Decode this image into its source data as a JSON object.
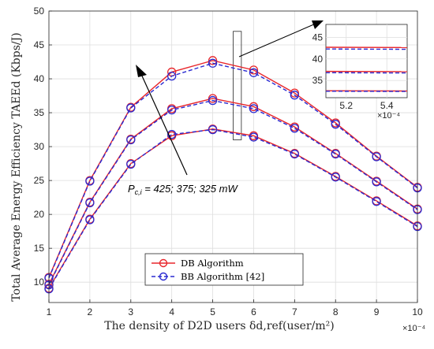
{
  "chart_data": {
    "type": "line",
    "xlabel": "The density of D2D users δd,ref(user/m²)",
    "ylabel": "Total Average Energy Efficiency TAEEd (Kbps/J)",
    "x_exponent": "×10⁻⁴",
    "x": [
      1,
      2,
      3,
      4,
      5,
      6,
      7,
      8,
      9,
      10
    ],
    "xlim": [
      1,
      10
    ],
    "ylim": [
      7,
      50
    ],
    "xticks": [
      "1",
      "2",
      "3",
      "4",
      "5",
      "6",
      "7",
      "8",
      "9",
      "10"
    ],
    "yticks": [
      "10",
      "15",
      "20",
      "25",
      "30",
      "35",
      "40",
      "45",
      "50"
    ],
    "grid": true,
    "legend_position": "bottom-center",
    "series": [
      {
        "name": "DB Algorithm",
        "group": "Pc=425",
        "values": [
          10.7,
          25.0,
          35.8,
          41.0,
          42.7,
          41.3,
          37.9,
          33.5,
          28.6,
          24.0
        ]
      },
      {
        "name": "BB Algorithm [42]",
        "group": "Pc=425",
        "values": [
          10.6,
          24.9,
          35.7,
          40.4,
          42.3,
          40.9,
          37.6,
          33.3,
          28.5,
          23.9
        ]
      },
      {
        "name": "DB Algorithm",
        "group": "Pc=375",
        "values": [
          9.7,
          21.8,
          31.1,
          35.6,
          37.1,
          35.9,
          32.9,
          29.0,
          24.9,
          20.8
        ]
      },
      {
        "name": "BB Algorithm [42]",
        "group": "Pc=375",
        "values": [
          9.6,
          21.7,
          31.0,
          35.4,
          36.8,
          35.6,
          32.7,
          28.9,
          24.8,
          20.7
        ]
      },
      {
        "name": "DB Algorithm",
        "group": "Pc=325",
        "values": [
          9.1,
          19.3,
          27.5,
          31.6,
          32.6,
          31.6,
          29.0,
          25.6,
          22.0,
          18.3
        ]
      },
      {
        "name": "BB Algorithm [42]",
        "group": "Pc=325",
        "values": [
          9.0,
          19.2,
          27.4,
          31.8,
          32.5,
          31.4,
          28.9,
          25.5,
          21.9,
          18.2
        ]
      }
    ],
    "series_styles": {
      "DB Algorithm": {
        "color": "#e8262b",
        "dash": "solid",
        "marker": "circle"
      },
      "BB Algorithm [42]": {
        "color": "#2a2ad1",
        "dash": "dashed",
        "marker": "circle"
      }
    },
    "legend": [
      "DB Algorithm",
      "BB Algorithm [42]"
    ],
    "annotation": "P_{c,i} = 425; 375; 325 mW",
    "annotation_parts": {
      "P": "P",
      "sub": "c,i",
      "rest": " = 425; 375; 325 mW"
    },
    "inset": {
      "xlim": [
        5.1,
        5.5
      ],
      "ylim": [
        31,
        48
      ],
      "xticks": [
        "5.2",
        "5.4"
      ],
      "yticks": [
        "35",
        "40",
        "45"
      ],
      "x_exponent": "×10⁻⁴",
      "zoom_xlim": [
        5.5,
        5.7
      ],
      "zoom_ylim": [
        31,
        47
      ]
    }
  }
}
